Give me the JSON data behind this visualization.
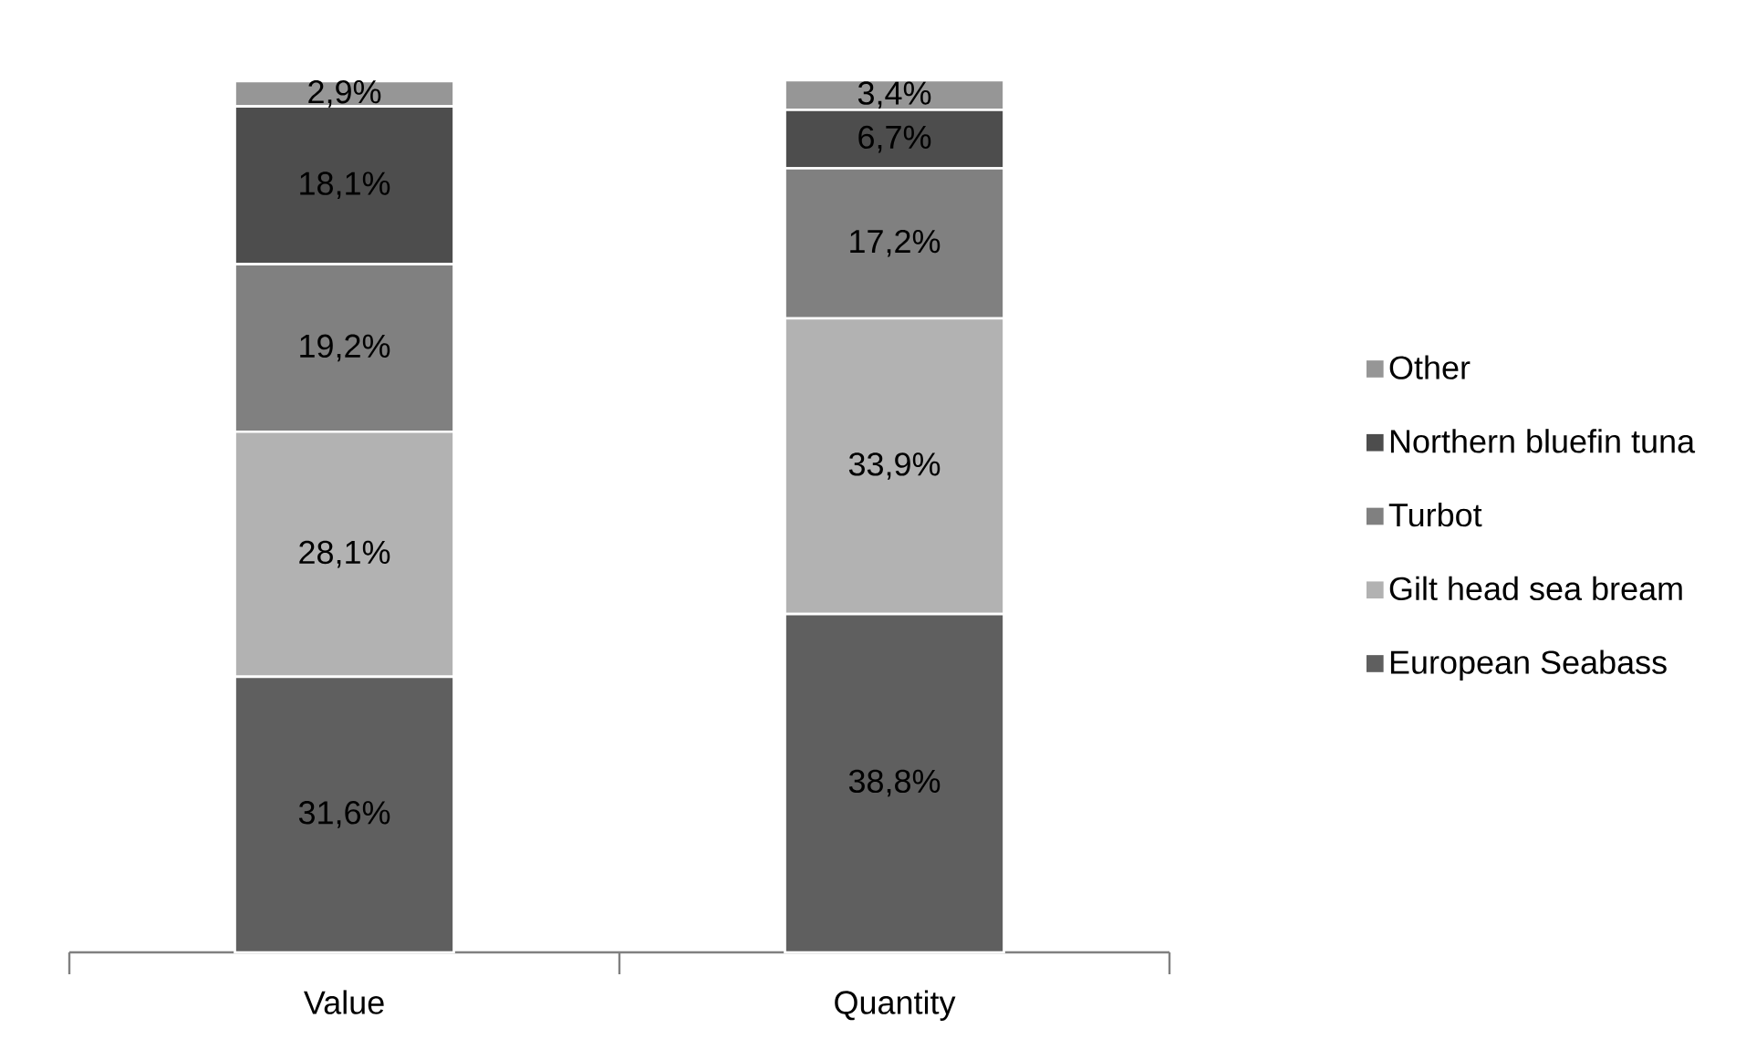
{
  "chart_data": {
    "type": "bar",
    "stacked": true,
    "categories": [
      "Value",
      "Quantity"
    ],
    "ylim": [
      0,
      100
    ],
    "tick_labels": "x",
    "legend": "right",
    "series": [
      {
        "name": "European Seabass",
        "color": "#5f5f5f",
        "values": [
          31.6,
          38.8
        ],
        "value_labels": [
          "31,6%",
          "38,8%"
        ]
      },
      {
        "name": "Gilt head sea bream",
        "color": "#b2b2b2",
        "values": [
          28.1,
          33.9
        ],
        "value_labels": [
          "28,1%",
          "33,9%"
        ]
      },
      {
        "name": "Turbot",
        "color": "#808080",
        "values": [
          19.2,
          17.2
        ],
        "value_labels": [
          "19,2%",
          "17,2%"
        ]
      },
      {
        "name": "Northern bluefin tuna",
        "color": "#4d4d4d",
        "values": [
          18.1,
          6.7
        ],
        "value_labels": [
          "18,1%",
          "6,7%"
        ]
      },
      {
        "name": "Other",
        "color": "#969696",
        "values": [
          2.9,
          3.4
        ],
        "value_labels": [
          "2,9%",
          "3,4%"
        ]
      }
    ]
  }
}
